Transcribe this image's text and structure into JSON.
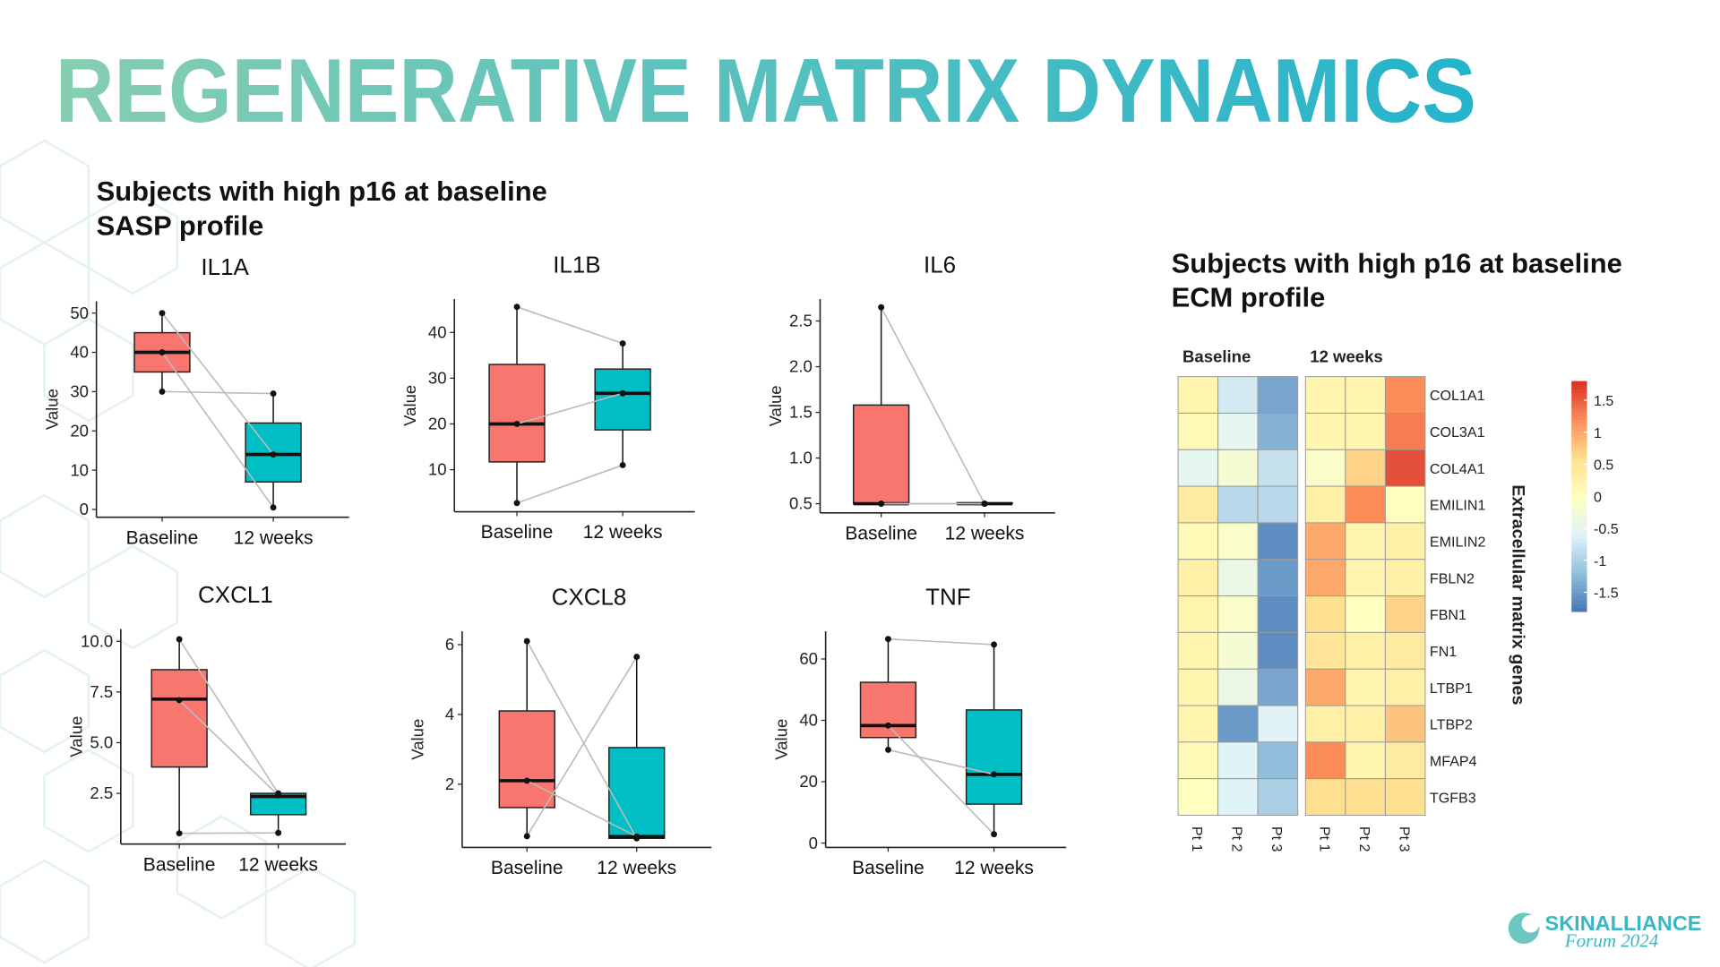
{
  "title": "REGENERATIVE MATRIX DYNAMICS",
  "sasp_heading": [
    "Subjects with high p16 at baseline",
    "SASP profile"
  ],
  "ecm_heading": [
    "Subjects with high p16 at baseline",
    "ECM profile"
  ],
  "logo": {
    "brand": "SKINALLIANCE",
    "event": "Forum 2024"
  },
  "chart_data": [
    {
      "type": "box",
      "title": "IL1A",
      "ylabel": "Value",
      "categories": [
        "Baseline",
        "12 weeks"
      ],
      "colors": [
        "#f8766d",
        "#00bfc4"
      ],
      "ylim": [
        -2,
        53
      ],
      "yticks": [
        0,
        10,
        20,
        30,
        40,
        50
      ],
      "boxes": [
        {
          "min": 30,
          "q1": 35,
          "median": 40,
          "q3": 45,
          "max": 50
        },
        {
          "min": 0.5,
          "q1": 7,
          "median": 14,
          "q3": 22,
          "max": 29.5
        }
      ],
      "points": [
        [
          50,
          40,
          30
        ],
        [
          14,
          0.5,
          29.5
        ]
      ]
    },
    {
      "type": "box",
      "title": "IL1B",
      "ylabel": "Value",
      "categories": [
        "Baseline",
        "12 weeks"
      ],
      "colors": [
        "#f8766d",
        "#00bfc4"
      ],
      "ylim": [
        0.8,
        47.3
      ],
      "yticks": [
        10,
        20,
        30,
        40
      ],
      "boxes": [
        {
          "min": 2.7,
          "q1": 11.7,
          "median": 20,
          "q3": 33,
          "max": 45.6
        },
        {
          "min": 11,
          "q1": 18.7,
          "median": 26.7,
          "q3": 32,
          "max": 37.6
        }
      ],
      "points": [
        [
          45.6,
          20,
          2.7
        ],
        [
          37.6,
          26.7,
          11
        ]
      ]
    },
    {
      "type": "box",
      "title": "IL6",
      "ylabel": "Value",
      "categories": [
        "Baseline",
        "12 weeks"
      ],
      "colors": [
        "#f8766d",
        "#00bfc4"
      ],
      "ylim": [
        0.4,
        2.74
      ],
      "yticks": [
        0.5,
        {
          "value": 1,
          "label": "1.0"
        },
        1.5,
        {
          "value": 2,
          "label": "2.0"
        },
        2.5
      ],
      "boxes": [
        {
          "min": 0.5,
          "q1": 0.5,
          "median": 0.5,
          "q3": 1.58,
          "max": 2.65
        },
        {
          "min": 0.5,
          "q1": 0.5,
          "median": 0.5,
          "q3": 0.51,
          "max": 0.51
        }
      ],
      "points": [
        [
          2.65,
          0.5,
          0.5
        ],
        [
          0.5,
          0.5,
          0.5
        ]
      ]
    },
    {
      "type": "box",
      "title": "CXCL1",
      "ylabel": "Value",
      "categories": [
        "Baseline",
        "12 weeks"
      ],
      "colors": [
        "#f8766d",
        "#00bfc4"
      ],
      "ylim": [
        0,
        10.6
      ],
      "yticks": [
        2.5,
        {
          "value": 5,
          "label": "5.0"
        },
        7.5,
        {
          "value": 10,
          "label": "10.0"
        }
      ],
      "boxes": [
        {
          "min": 0.53,
          "q1": 3.8,
          "median": 7.15,
          "q3": 8.6,
          "max": 10.1
        },
        {
          "min": 0.55,
          "q1": 1.45,
          "median": 2.35,
          "q3": 2.5,
          "max": 2.5
        }
      ],
      "points": [
        [
          10.1,
          7.1,
          0.53
        ],
        [
          2.5,
          2.4,
          0.55
        ]
      ]
    },
    {
      "type": "box",
      "title": "CXCL8",
      "ylabel": "Value",
      "categories": [
        "Baseline",
        "12 weeks"
      ],
      "colors": [
        "#f8766d",
        "#00bfc4"
      ],
      "ylim": [
        0.19,
        6.38
      ],
      "yticks": [
        2,
        4,
        6
      ],
      "boxes": [
        {
          "min": 0.51,
          "q1": 1.33,
          "median": 2.1,
          "q3": 4.1,
          "max": 6.1
        },
        {
          "min": 0.45,
          "q1": 0.45,
          "median": 0.5,
          "q3": 3.05,
          "max": 5.65
        }
      ],
      "points": [
        [
          6.1,
          2.1,
          0.51
        ],
        [
          0.45,
          0.5,
          5.65
        ]
      ]
    },
    {
      "type": "box",
      "title": "TNF",
      "ylabel": "Value",
      "categories": [
        "Baseline",
        "12 weeks"
      ],
      "colors": [
        "#f8766d",
        "#00bfc4"
      ],
      "ylim": [
        -1.4,
        69
      ],
      "yticks": [
        0,
        20,
        40,
        60
      ],
      "boxes": [
        {
          "min": 30.4,
          "q1": 34.4,
          "median": 38.3,
          "q3": 52.4,
          "max": 66.5
        },
        {
          "min": 2.9,
          "q1": 12.7,
          "median": 22.4,
          "q3": 43.4,
          "max": 64.7
        }
      ],
      "points": [
        [
          66.5,
          38.3,
          30.4
        ],
        [
          64.7,
          2.9,
          22.4
        ]
      ]
    },
    {
      "type": "heatmap",
      "groups": [
        "Baseline",
        "12 weeks"
      ],
      "columns": [
        "Pt 1",
        "Pt 2",
        "Pt 3",
        "Pt 1",
        "Pt 2",
        "Pt 3"
      ],
      "rows": [
        "COL1A1",
        "COL3A1",
        "COL4A1",
        "EMILIN1",
        "EMILIN2",
        "FBLN2",
        "FBN1",
        "FN1",
        "LTBP1",
        "LTBP2",
        "MFAP4",
        "TGFB3"
      ],
      "values": [
        [
          0.2,
          -0.7,
          -1.4,
          0.2,
          0.2,
          1.2
        ],
        [
          0.1,
          -0.5,
          -1.3,
          0.2,
          0.2,
          1.3
        ],
        [
          -0.5,
          -0.2,
          -0.8,
          -0.1,
          0.7,
          1.6
        ],
        [
          0.4,
          -0.9,
          -0.9,
          0.3,
          1.2,
          0.0
        ],
        [
          0.1,
          -0.1,
          -1.6,
          1.0,
          0.2,
          0.3
        ],
        [
          0.3,
          -0.4,
          -1.5,
          1.0,
          0.2,
          0.3
        ],
        [
          0.2,
          -0.1,
          -1.6,
          0.6,
          0.0,
          0.7
        ],
        [
          0.2,
          -0.2,
          -1.6,
          0.5,
          0.3,
          0.4
        ],
        [
          0.2,
          -0.4,
          -1.4,
          1.0,
          0.2,
          0.3
        ],
        [
          0.2,
          -1.5,
          -0.6,
          0.3,
          0.3,
          0.8
        ],
        [
          0.1,
          -0.6,
          -1.2,
          1.2,
          0.2,
          0.4
        ],
        [
          0.0,
          -0.6,
          -1.0,
          0.6,
          0.6,
          0.6
        ]
      ],
      "ylabel": "Extracellular matrix genes",
      "colorbar_lim": [
        -1.8,
        1.8
      ],
      "colorbar_ticks": [
        1.5,
        1,
        0.5,
        0,
        -0.5,
        -1,
        -1.5
      ],
      "palette": [
        "#4575b4",
        "#91bfdb",
        "#e0f3f8",
        "#ffffbf",
        "#fee090",
        "#fc8d59",
        "#d73027"
      ]
    }
  ]
}
